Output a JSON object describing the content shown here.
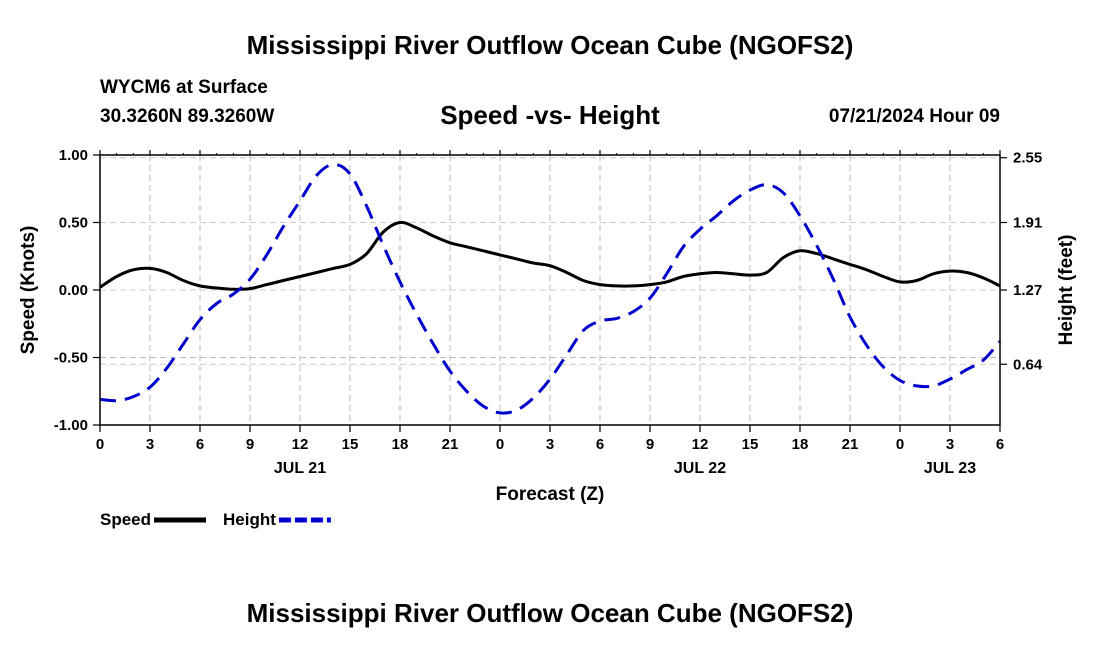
{
  "header": {
    "title": "Mississippi River Outflow Ocean Cube (NGOFS2)",
    "station": "WYCM6 at Surface",
    "coords": "30.3260N  89.3260W",
    "subtitle": "Speed -vs- Height",
    "datetime": "07/21/2024 Hour 09",
    "footer_title": "Mississippi River Outflow Ocean Cube (NGOFS2)"
  },
  "chart_data": {
    "type": "line",
    "xlabel": "Forecast (Z)",
    "ylabel_left": "Speed (Knots)",
    "ylabel_right": "Height (feet)",
    "x_range": [
      0,
      54
    ],
    "x_tick_values": [
      0,
      3,
      6,
      9,
      12,
      15,
      18,
      21,
      24,
      27,
      30,
      33,
      36,
      39,
      42,
      45,
      48,
      51,
      54
    ],
    "x_tick_labels": [
      "0",
      "3",
      "6",
      "9",
      "12",
      "15",
      "18",
      "21",
      "0",
      "3",
      "6",
      "9",
      "12",
      "15",
      "18",
      "21",
      "0",
      "3",
      "6"
    ],
    "day_labels": [
      {
        "x": 12,
        "label": "JUL 21"
      },
      {
        "x": 36,
        "label": "JUL 22"
      },
      {
        "x": 60,
        "label": "JUL 23"
      }
    ],
    "y_left_range": [
      -1.0,
      1.0
    ],
    "y_left_ticks": [
      -1.0,
      -0.5,
      0.0,
      0.5,
      1.0
    ],
    "y_left_tick_labels": [
      "-1.00",
      "-0.50",
      "0.00",
      "0.50",
      "1.00"
    ],
    "y_right_tick_labels": [
      "0.64",
      "1.27",
      "1.91",
      "2.55"
    ],
    "grid": true,
    "series": [
      {
        "name": "Speed",
        "color": "#000000",
        "dash": "solid",
        "points": [
          [
            0,
            0.02
          ],
          [
            1,
            0.1
          ],
          [
            2,
            0.15
          ],
          [
            3,
            0.16
          ],
          [
            4,
            0.13
          ],
          [
            5,
            0.07
          ],
          [
            6,
            0.03
          ],
          [
            7,
            0.015
          ],
          [
            8,
            0.005
          ],
          [
            9,
            0.01
          ],
          [
            10,
            0.04
          ],
          [
            11,
            0.07
          ],
          [
            12,
            0.1
          ],
          [
            13,
            0.13
          ],
          [
            14,
            0.16
          ],
          [
            15,
            0.19
          ],
          [
            16,
            0.27
          ],
          [
            17,
            0.43
          ],
          [
            18,
            0.5
          ],
          [
            19,
            0.46
          ],
          [
            20,
            0.4
          ],
          [
            21,
            0.35
          ],
          [
            22,
            0.32
          ],
          [
            23,
            0.29
          ],
          [
            24,
            0.26
          ],
          [
            25,
            0.23
          ],
          [
            26,
            0.2
          ],
          [
            27,
            0.18
          ],
          [
            28,
            0.13
          ],
          [
            29,
            0.07
          ],
          [
            30,
            0.04
          ],
          [
            31,
            0.03
          ],
          [
            32,
            0.03
          ],
          [
            33,
            0.04
          ],
          [
            34,
            0.06
          ],
          [
            35,
            0.1
          ],
          [
            36,
            0.12
          ],
          [
            37,
            0.13
          ],
          [
            38,
            0.12
          ],
          [
            39,
            0.11
          ],
          [
            40,
            0.13
          ],
          [
            41,
            0.24
          ],
          [
            42,
            0.29
          ],
          [
            43,
            0.27
          ],
          [
            44,
            0.23
          ],
          [
            45,
            0.19
          ],
          [
            46,
            0.15
          ],
          [
            47,
            0.1
          ],
          [
            48,
            0.06
          ],
          [
            49,
            0.07
          ],
          [
            50,
            0.12
          ],
          [
            51,
            0.14
          ],
          [
            52,
            0.13
          ],
          [
            53,
            0.09
          ],
          [
            54,
            0.03
          ]
        ]
      },
      {
        "name": "Height",
        "color": "#0000cc",
        "dash": "dashed",
        "points": [
          [
            0,
            -0.81
          ],
          [
            1,
            -0.82
          ],
          [
            2,
            -0.79
          ],
          [
            3,
            -0.72
          ],
          [
            4,
            -0.58
          ],
          [
            5,
            -0.4
          ],
          [
            6,
            -0.22
          ],
          [
            7,
            -0.1
          ],
          [
            8,
            -0.03
          ],
          [
            9,
            0.08
          ],
          [
            10,
            0.26
          ],
          [
            11,
            0.47
          ],
          [
            12,
            0.66
          ],
          [
            13,
            0.85
          ],
          [
            14,
            0.93
          ],
          [
            15,
            0.86
          ],
          [
            16,
            0.62
          ],
          [
            17,
            0.33
          ],
          [
            18,
            0.06
          ],
          [
            19,
            -0.18
          ],
          [
            20,
            -0.4
          ],
          [
            21,
            -0.6
          ],
          [
            22,
            -0.75
          ],
          [
            23,
            -0.86
          ],
          [
            24,
            -0.91
          ],
          [
            25,
            -0.89
          ],
          [
            26,
            -0.8
          ],
          [
            27,
            -0.66
          ],
          [
            28,
            -0.48
          ],
          [
            29,
            -0.3
          ],
          [
            30,
            -0.23
          ],
          [
            31,
            -0.21
          ],
          [
            32,
            -0.16
          ],
          [
            33,
            -0.06
          ],
          [
            34,
            0.12
          ],
          [
            35,
            0.32
          ],
          [
            36,
            0.45
          ],
          [
            37,
            0.55
          ],
          [
            38,
            0.66
          ],
          [
            39,
            0.74
          ],
          [
            40,
            0.78
          ],
          [
            41,
            0.72
          ],
          [
            42,
            0.55
          ],
          [
            43,
            0.33
          ],
          [
            44,
            0.08
          ],
          [
            45,
            -0.2
          ],
          [
            46,
            -0.41
          ],
          [
            47,
            -0.57
          ],
          [
            48,
            -0.67
          ],
          [
            49,
            -0.71
          ],
          [
            50,
            -0.71
          ],
          [
            51,
            -0.66
          ],
          [
            52,
            -0.59
          ],
          [
            53,
            -0.52
          ],
          [
            54,
            -0.38
          ]
        ]
      }
    ],
    "legend": [
      {
        "label": "Speed",
        "color": "#000000",
        "dash": "solid"
      },
      {
        "label": "Height",
        "color": "#0000cc",
        "dash": "dashed"
      }
    ],
    "legend_position": "bottom-left"
  }
}
